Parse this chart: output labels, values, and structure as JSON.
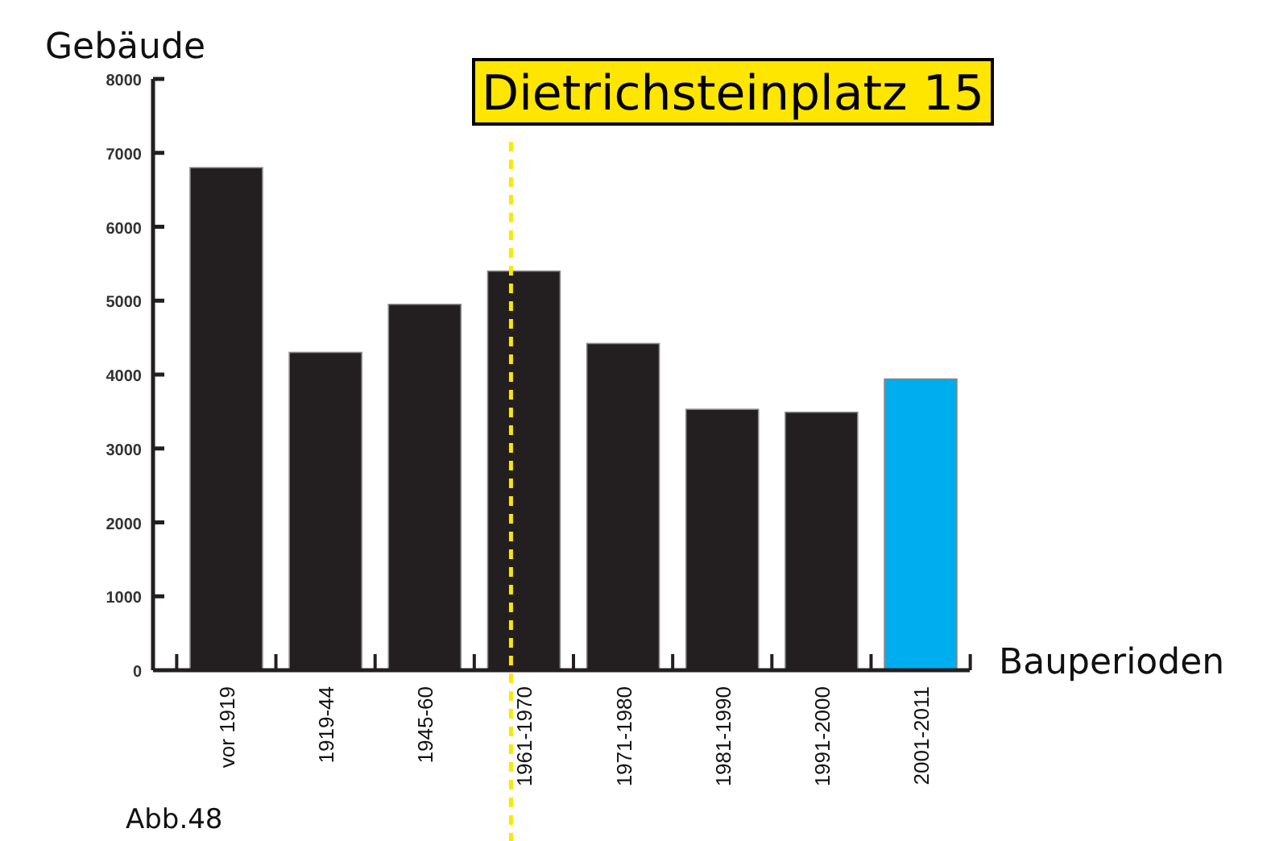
{
  "chart_data": {
    "type": "bar",
    "categories": [
      "vor 1919",
      "1919-44",
      "1945-60",
      "1961-1970",
      "1971-1980",
      "1981-1990",
      "1991-2000",
      "2001-2011"
    ],
    "values": [
      6800,
      4300,
      4950,
      5400,
      4420,
      3530,
      3490,
      3940
    ],
    "colors": [
      "#231f20",
      "#231f20",
      "#231f20",
      "#231f20",
      "#231f20",
      "#231f20",
      "#231f20",
      "#00aeef"
    ],
    "ylim": [
      0,
      8000
    ],
    "yticks": [
      0,
      1000,
      2000,
      3000,
      4000,
      5000,
      6000,
      7000,
      8000
    ],
    "ylabel": "Gebäude",
    "xlabel": "Bauperioden",
    "ref_lines": [
      {
        "axis": "x",
        "value": "1961-1970",
        "label": "Dietrichsteinplatz 15",
        "color": "#ffe600",
        "line_style": "dashed"
      }
    ],
    "annotations": [
      "Abb.48"
    ],
    "grid": false
  }
}
